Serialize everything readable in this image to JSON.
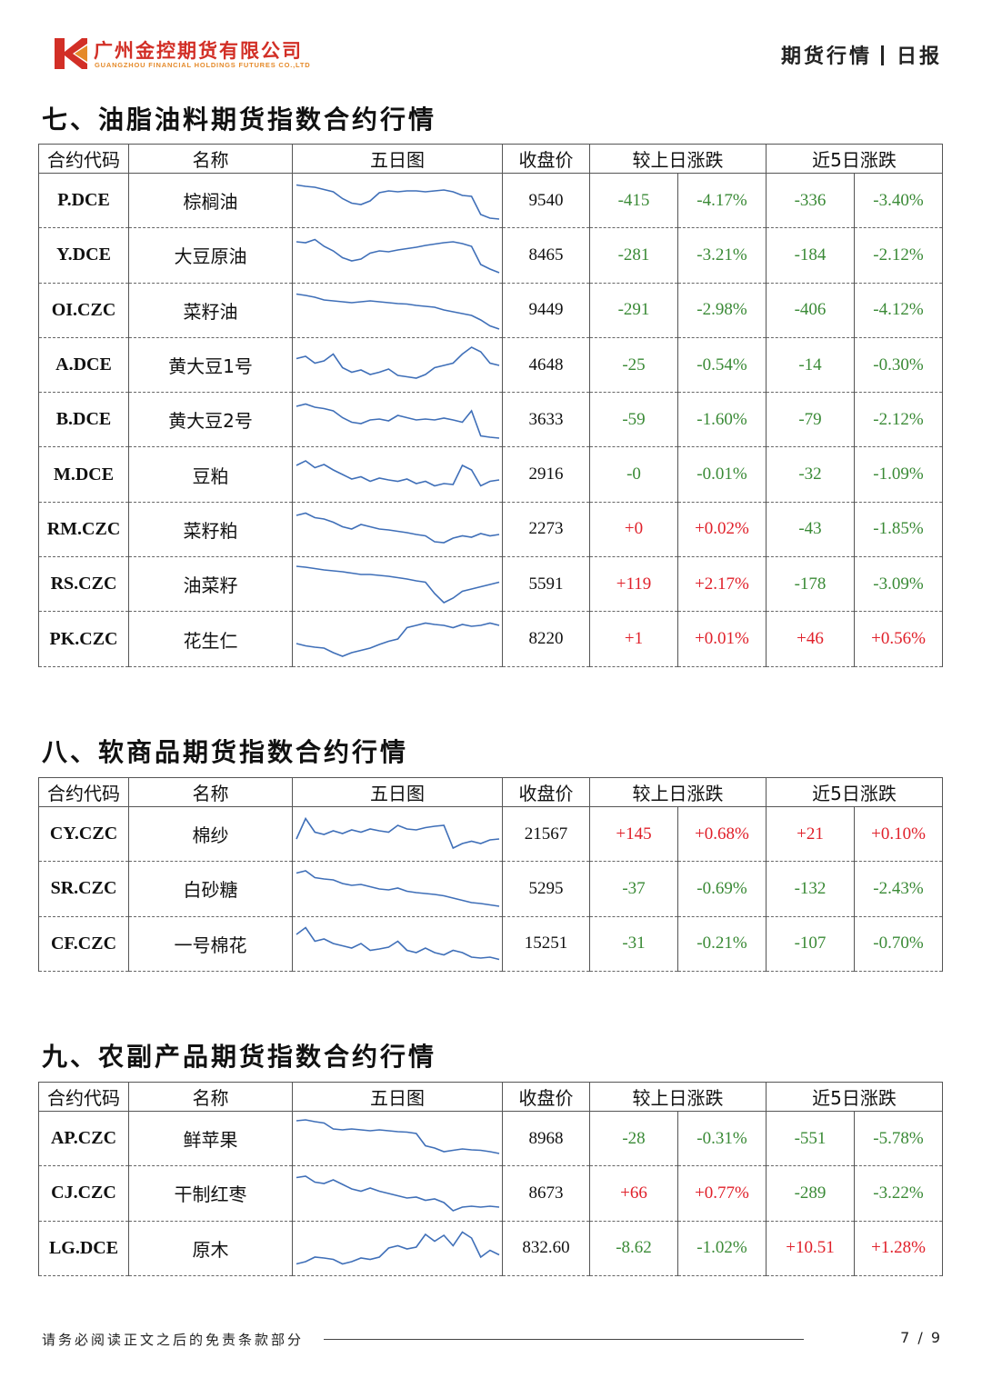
{
  "header": {
    "company_cn": "广州金控期货有限公司",
    "company_en": "GUANGZHOU FINANCIAL HOLDINGS FUTURES CO.,LTD",
    "report_type": "期货行情",
    "report_period": "日报",
    "colors": {
      "brand_red": "#d22f26",
      "brand_orange": "#e58a2a"
    }
  },
  "columns": {
    "code": "合约代码",
    "name": "名称",
    "chart": "五日图",
    "close": "收盘价",
    "daily": "较上日涨跌",
    "five_day": "近5日涨跌"
  },
  "colors": {
    "up": "#e0202a",
    "down": "#3a8a36",
    "sparkline": "#3f6fb8"
  },
  "sections": [
    {
      "title": "七、油脂油料期货指数合约行情",
      "rows": [
        {
          "code": "P.DCE",
          "name": "棕榈油",
          "close": "9540",
          "chg": "-415",
          "chg_pct": "-4.17%",
          "chg5": "-336",
          "chg5_pct": "-3.40%",
          "spark": [
            0.85,
            0.82,
            0.8,
            0.75,
            0.7,
            0.55,
            0.45,
            0.42,
            0.5,
            0.68,
            0.72,
            0.7,
            0.72,
            0.72,
            0.7,
            0.72,
            0.74,
            0.7,
            0.62,
            0.6,
            0.2,
            0.12,
            0.1
          ]
        },
        {
          "code": "Y.DCE",
          "name": "大豆原油",
          "close": "8465",
          "chg": "-281",
          "chg_pct": "-3.21%",
          "chg5": "-184",
          "chg5_pct": "-2.12%",
          "spark": [
            0.8,
            0.78,
            0.85,
            0.7,
            0.6,
            0.45,
            0.38,
            0.42,
            0.55,
            0.6,
            0.58,
            0.62,
            0.65,
            0.68,
            0.72,
            0.75,
            0.78,
            0.8,
            0.76,
            0.7,
            0.3,
            0.2,
            0.12
          ]
        },
        {
          "code": "OI.CZC",
          "name": "菜籽油",
          "close": "9449",
          "chg": "-291",
          "chg_pct": "-2.98%",
          "chg5": "-406",
          "chg5_pct": "-4.12%",
          "spark": [
            0.85,
            0.82,
            0.78,
            0.72,
            0.7,
            0.68,
            0.66,
            0.68,
            0.7,
            0.68,
            0.66,
            0.64,
            0.63,
            0.6,
            0.58,
            0.56,
            0.5,
            0.46,
            0.42,
            0.38,
            0.28,
            0.15,
            0.08
          ]
        },
        {
          "code": "A.DCE",
          "name": "黄大豆1号",
          "close": "4648",
          "chg": "-25",
          "chg_pct": "-0.54%",
          "chg5": "-14",
          "chg5_pct": "-0.30%",
          "spark": [
            0.65,
            0.7,
            0.55,
            0.6,
            0.75,
            0.45,
            0.35,
            0.4,
            0.3,
            0.35,
            0.42,
            0.28,
            0.25,
            0.22,
            0.3,
            0.45,
            0.5,
            0.55,
            0.75,
            0.9,
            0.8,
            0.55,
            0.5
          ]
        },
        {
          "code": "B.DCE",
          "name": "黄大豆2号",
          "close": "3633",
          "chg": "-59",
          "chg_pct": "-1.60%",
          "chg5": "-79",
          "chg5_pct": "-2.12%",
          "spark": [
            0.8,
            0.85,
            0.78,
            0.75,
            0.7,
            0.55,
            0.45,
            0.42,
            0.5,
            0.52,
            0.48,
            0.6,
            0.55,
            0.5,
            0.52,
            0.5,
            0.54,
            0.5,
            0.45,
            0.7,
            0.15,
            0.12,
            0.1
          ]
        },
        {
          "code": "M.DCE",
          "name": "豆粕",
          "close": "2916",
          "chg": "-0",
          "chg_pct": "-0.01%",
          "chg5": "-32",
          "chg5_pct": "-1.09%",
          "spark": [
            0.7,
            0.8,
            0.65,
            0.72,
            0.6,
            0.5,
            0.4,
            0.45,
            0.35,
            0.42,
            0.38,
            0.35,
            0.4,
            0.3,
            0.35,
            0.25,
            0.3,
            0.28,
            0.7,
            0.6,
            0.25,
            0.35,
            0.38
          ]
        },
        {
          "code": "RM.CZC",
          "name": "菜籽粕",
          "close": "2273",
          "chg": "+0",
          "chg_pct": "+0.02%",
          "chg5": "-43",
          "chg5_pct": "-1.85%",
          "spark": [
            0.8,
            0.85,
            0.75,
            0.72,
            0.65,
            0.55,
            0.5,
            0.6,
            0.55,
            0.5,
            0.48,
            0.45,
            0.42,
            0.38,
            0.35,
            0.22,
            0.2,
            0.3,
            0.35,
            0.32,
            0.4,
            0.35,
            0.38
          ]
        },
        {
          "code": "RS.CZC",
          "name": "油菜籽",
          "close": "5591",
          "chg": "+119",
          "chg_pct": "+2.17%",
          "chg5": "-178",
          "chg5_pct": "-3.09%",
          "spark": [
            0.9,
            0.88,
            0.85,
            0.82,
            0.8,
            0.78,
            0.75,
            0.72,
            0.72,
            0.7,
            0.68,
            0.65,
            0.62,
            0.58,
            0.55,
            0.3,
            0.1,
            0.2,
            0.35,
            0.4,
            0.45,
            0.5,
            0.55
          ]
        },
        {
          "code": "PK.CZC",
          "name": "花生仁",
          "close": "8220",
          "chg": "+1",
          "chg_pct": "+0.01%",
          "chg5": "+46",
          "chg5_pct": "+0.56%",
          "spark": [
            0.4,
            0.35,
            0.32,
            0.3,
            0.2,
            0.12,
            0.2,
            0.25,
            0.3,
            0.38,
            0.45,
            0.5,
            0.75,
            0.8,
            0.85,
            0.82,
            0.8,
            0.75,
            0.82,
            0.78,
            0.8,
            0.85,
            0.8
          ]
        }
      ]
    },
    {
      "title": "八、软商品期货指数合约行情",
      "rows": [
        {
          "code": "CY.CZC",
          "name": "棉纱",
          "close": "21567",
          "chg": "+145",
          "chg_pct": "+0.68%",
          "chg5": "+21",
          "chg5_pct": "+0.10%",
          "spark": [
            0.4,
            0.85,
            0.55,
            0.5,
            0.58,
            0.52,
            0.6,
            0.55,
            0.62,
            0.58,
            0.55,
            0.7,
            0.62,
            0.6,
            0.65,
            0.68,
            0.7,
            0.2,
            0.3,
            0.35,
            0.3,
            0.38,
            0.4
          ]
        },
        {
          "code": "SR.CZC",
          "name": "白砂糖",
          "close": "5295",
          "chg": "-37",
          "chg_pct": "-0.69%",
          "chg5": "-132",
          "chg5_pct": "-2.43%",
          "spark": [
            0.85,
            0.9,
            0.75,
            0.72,
            0.7,
            0.62,
            0.58,
            0.6,
            0.55,
            0.5,
            0.48,
            0.52,
            0.45,
            0.42,
            0.4,
            0.38,
            0.35,
            0.3,
            0.25,
            0.2,
            0.18,
            0.15,
            0.12
          ]
        },
        {
          "code": "CF.CZC",
          "name": "一号棉花",
          "close": "15251",
          "chg": "-31",
          "chg_pct": "-0.21%",
          "chg5": "-107",
          "chg5_pct": "-0.70%",
          "spark": [
            0.7,
            0.85,
            0.55,
            0.6,
            0.5,
            0.45,
            0.4,
            0.5,
            0.35,
            0.38,
            0.42,
            0.55,
            0.35,
            0.3,
            0.4,
            0.3,
            0.25,
            0.35,
            0.3,
            0.2,
            0.18,
            0.2,
            0.15
          ]
        }
      ]
    },
    {
      "title": "九、农副产品期货指数合约行情",
      "rows": [
        {
          "code": "AP.CZC",
          "name": "鲜苹果",
          "close": "8968",
          "chg": "-28",
          "chg_pct": "-0.31%",
          "chg5": "-551",
          "chg5_pct": "-5.78%",
          "spark": [
            0.9,
            0.92,
            0.88,
            0.85,
            0.72,
            0.7,
            0.72,
            0.7,
            0.68,
            0.7,
            0.68,
            0.66,
            0.65,
            0.62,
            0.35,
            0.3,
            0.22,
            0.25,
            0.28,
            0.26,
            0.25,
            0.22,
            0.18
          ]
        },
        {
          "code": "CJ.CZC",
          "name": "干制红枣",
          "close": "8673",
          "chg": "+66",
          "chg_pct": "+0.77%",
          "chg5": "-289",
          "chg5_pct": "-3.22%",
          "spark": [
            0.85,
            0.88,
            0.75,
            0.72,
            0.8,
            0.7,
            0.6,
            0.55,
            0.62,
            0.55,
            0.5,
            0.45,
            0.4,
            0.42,
            0.35,
            0.38,
            0.3,
            0.12,
            0.2,
            0.22,
            0.2,
            0.22,
            0.2
          ]
        },
        {
          "code": "LG.DCE",
          "name": "原木",
          "close": "832.60",
          "chg": "-8.62",
          "chg_pct": "-1.02%",
          "chg5": "+10.51",
          "chg5_pct": "+1.28%",
          "spark": [
            0.15,
            0.2,
            0.3,
            0.28,
            0.25,
            0.15,
            0.2,
            0.28,
            0.25,
            0.3,
            0.5,
            0.55,
            0.48,
            0.52,
            0.8,
            0.65,
            0.78,
            0.55,
            0.85,
            0.72,
            0.3,
            0.45,
            0.35
          ]
        }
      ]
    }
  ],
  "footer": {
    "disclaimer": "请务必阅读正文之后的免责条款部分",
    "page": "7 / 9"
  }
}
